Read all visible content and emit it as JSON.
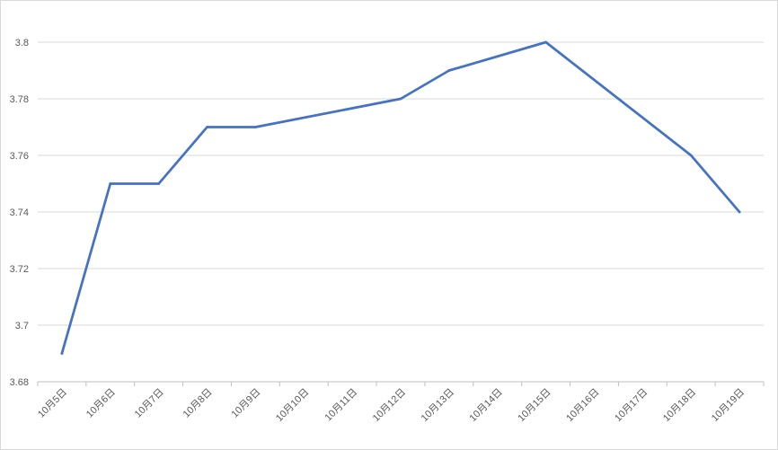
{
  "chart_data": {
    "type": "line",
    "title": "",
    "xlabel": "",
    "ylabel": "",
    "categories": [
      "10月5日",
      "10月6日",
      "10月7日",
      "10月8日",
      "10月9日",
      "10月10日",
      "10月11日",
      "10月12日",
      "10月13日",
      "10月14日",
      "10月15日",
      "10月16日",
      "10月17日",
      "10月18日",
      "10月19日"
    ],
    "series": [
      {
        "values": [
          3.69,
          3.75,
          3.75,
          3.77,
          3.77,
          null,
          null,
          3.78,
          3.79,
          null,
          3.8,
          null,
          null,
          3.76,
          3.74
        ],
        "color": "#4472c4"
      }
    ],
    "ylim": [
      3.68,
      3.8
    ],
    "yticks": [
      "3.68",
      "3.7",
      "3.72",
      "3.74",
      "3.76",
      "3.78",
      "3.8"
    ],
    "grid": true,
    "legend": "none",
    "gridline_color": "#d9d9d9",
    "axis_color": "#bfbfbf",
    "label_color": "#595959"
  }
}
